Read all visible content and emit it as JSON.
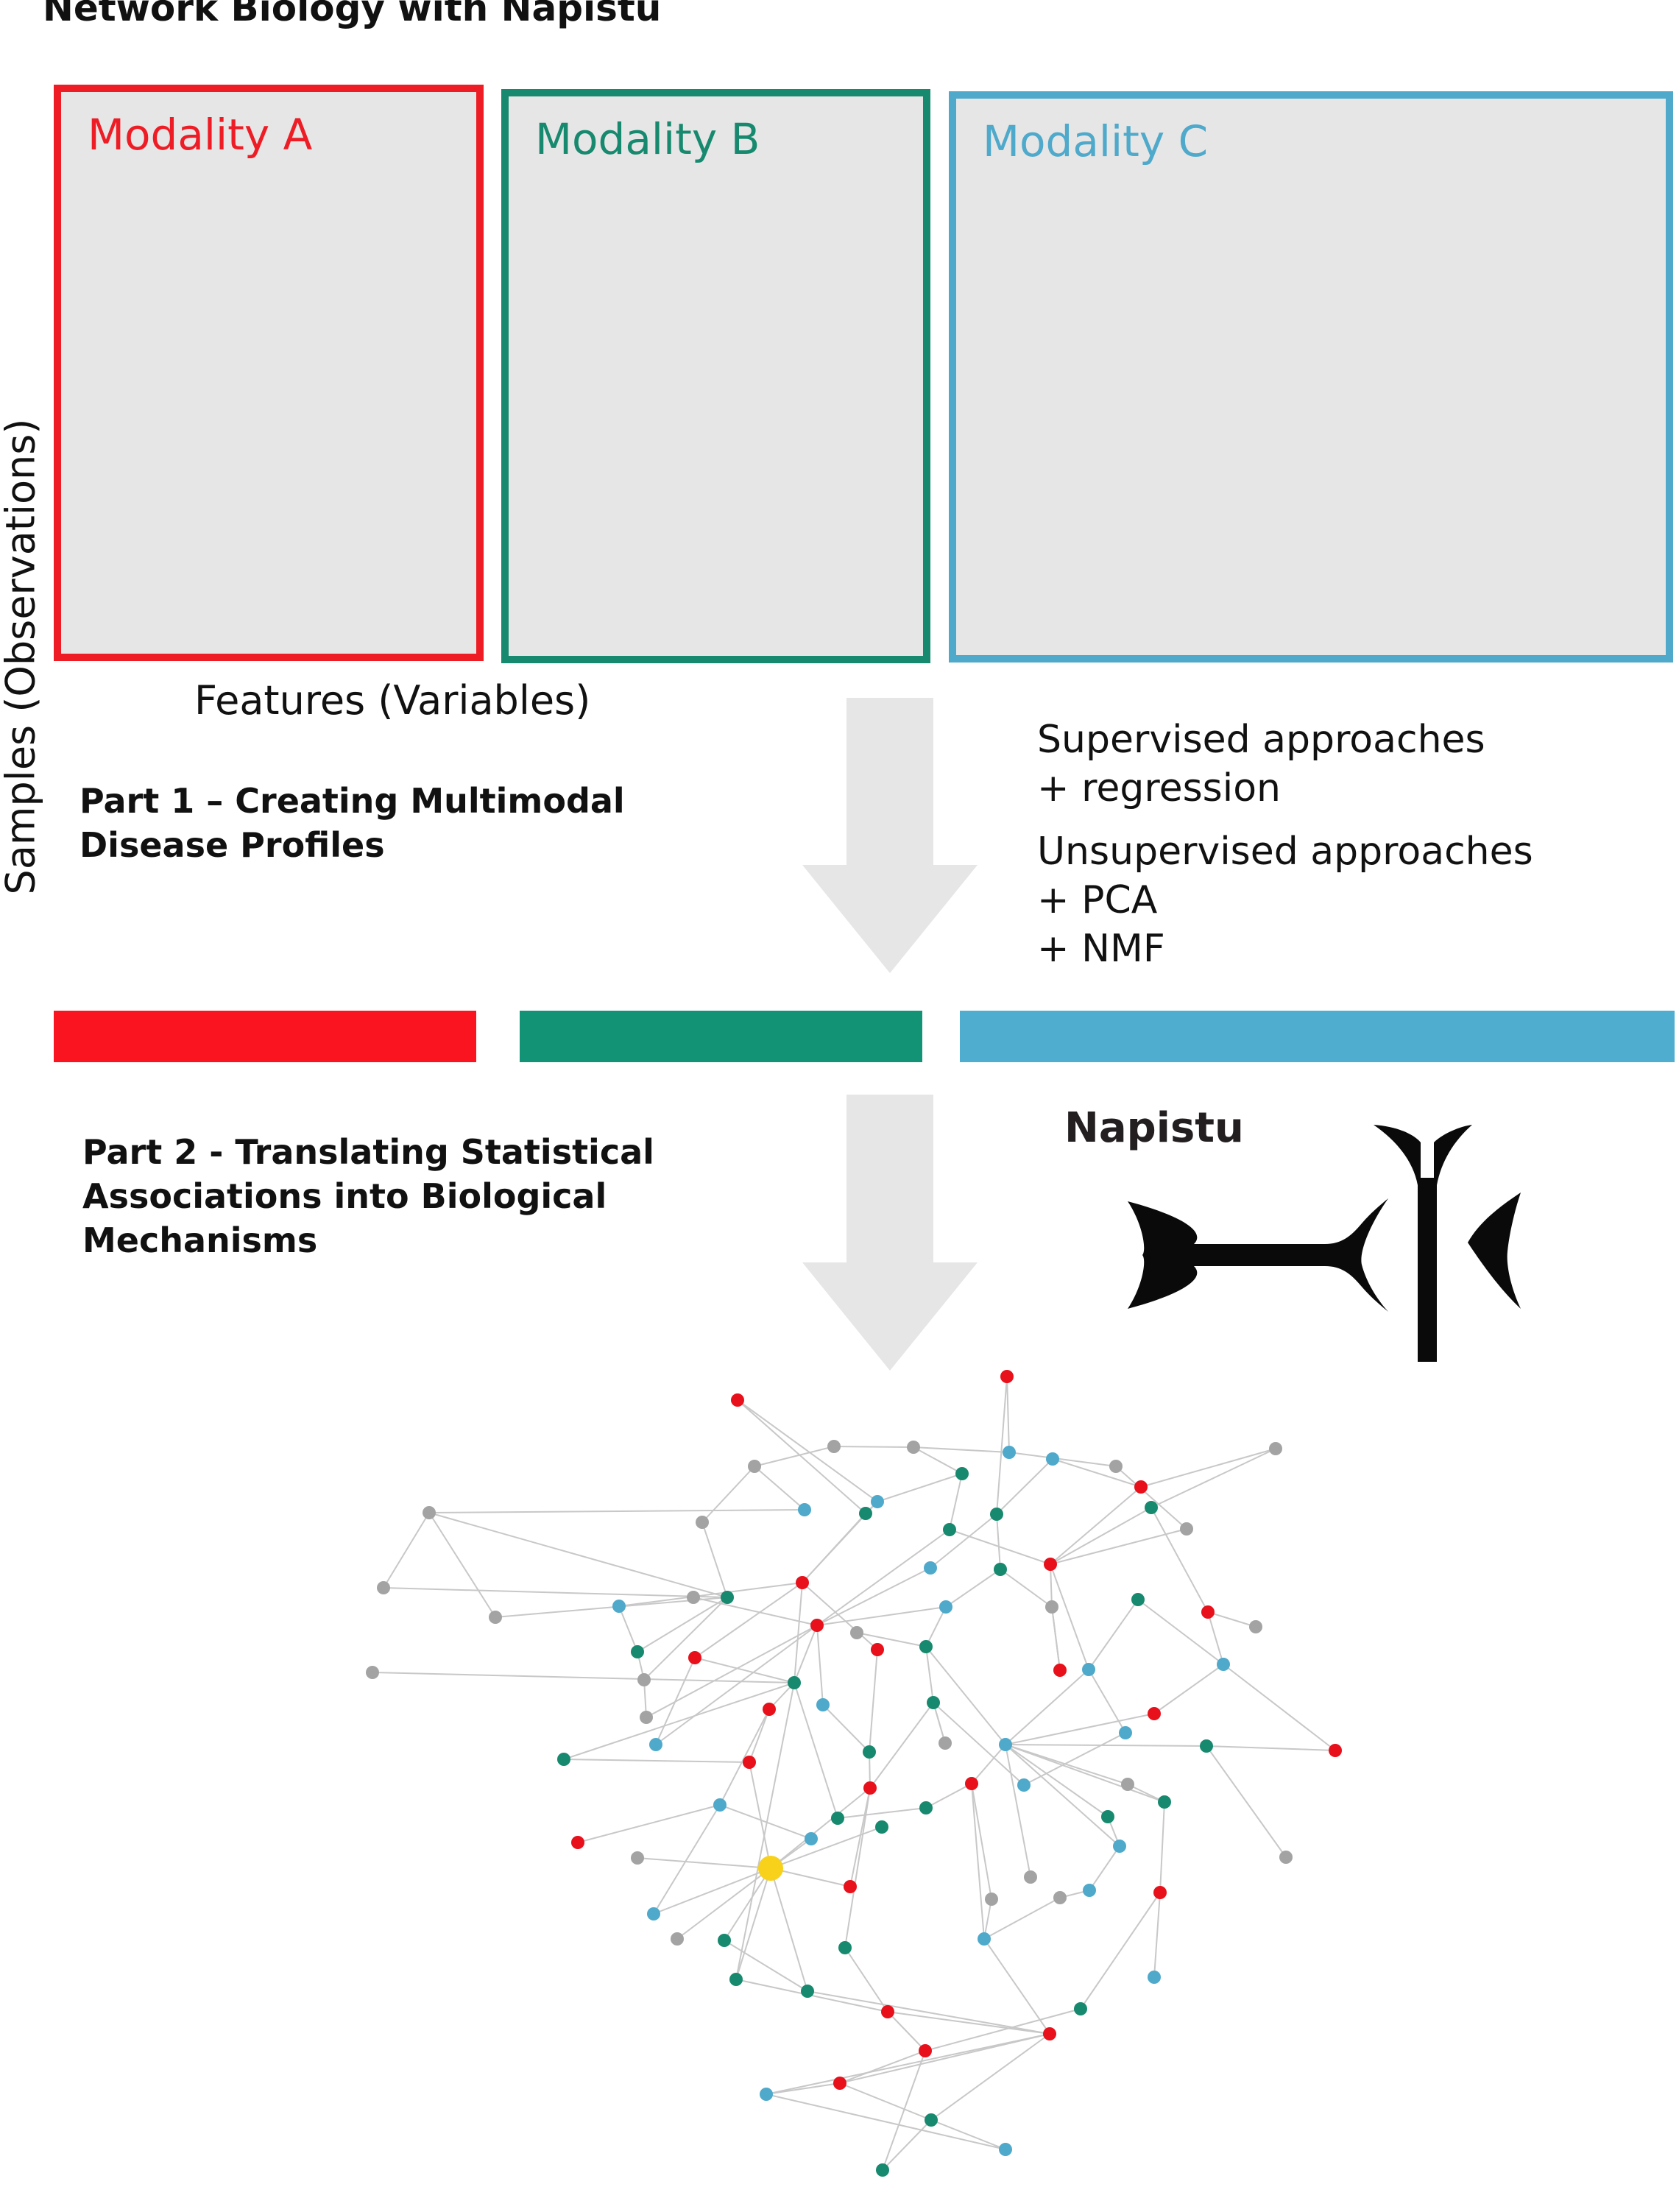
{
  "title": "Network Biology with Napistu",
  "axes": {
    "y_label": "Samples (Observations)",
    "x_label": "Features (Variables)"
  },
  "modalities": [
    {
      "label": "Modality A",
      "color": "#ee1c25"
    },
    {
      "label": "Modality B",
      "color": "#17896e"
    },
    {
      "label": "Modality C",
      "color": "#4ea9cb"
    }
  ],
  "part1": {
    "line1": "Part 1 – Creating Multimodal",
    "line2": "Disease Profiles"
  },
  "part2": {
    "line1": "Part 2 - Translating Statistical",
    "line2": "Associations into Biological",
    "line3": "Mechanisms"
  },
  "approaches": {
    "supervised": "Supervised approaches",
    "supervised_items": [
      "+ regression"
    ],
    "unsupervised": "Unsupervised approaches",
    "unsupervised_items": [
      "+ PCA",
      "+ NMF"
    ]
  },
  "brand": {
    "name": "Napistu"
  },
  "network": {
    "node_colors": {
      "red": "#e8101a",
      "green": "#17896e",
      "blue": "#4ea9cb",
      "gray": "#a3a3a3",
      "highlight": "#f7d11a"
    }
  }
}
